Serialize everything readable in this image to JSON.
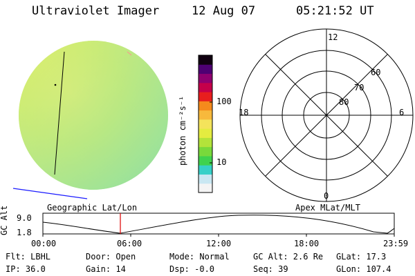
{
  "header": {
    "title": "Ultraviolet Imager",
    "date": "12 Aug 07",
    "time": "05:21:52 UT"
  },
  "colorbar": {
    "unit_label": "photon cm⁻²s⁻¹",
    "ticks": [
      "100",
      "10"
    ],
    "colors": [
      "#f4f4f4",
      "#c9e7f2",
      "#36d0c8",
      "#3fd24e",
      "#79d93b",
      "#b3e33a",
      "#e4ec40",
      "#f4e35b",
      "#f7b93c",
      "#f58a1c",
      "#e81e1e",
      "#c5004a",
      "#8f0070",
      "#4e0073",
      "#100010"
    ]
  },
  "polar_plot": {
    "mlt_labels": {
      "top": "12",
      "left": "18",
      "right": "6",
      "bottom": "0"
    },
    "lat_labels": [
      "60",
      "70",
      "80"
    ]
  },
  "image_panel": {
    "fill_color": "#c6ee72"
  },
  "timeline": {
    "left_label": "Geographic Lat/Lon",
    "right_label": "Apex MLat/MLT",
    "axis_label": "GC Alt",
    "y_ticks": [
      "9.0",
      "1.8"
    ],
    "x_ticks": [
      "00:00",
      "06:00",
      "12:00",
      "18:00",
      "23:59"
    ],
    "marker_color": "#e01010"
  },
  "info": {
    "flt": "Flt: LBHL",
    "ip": "IP: 36.0",
    "door": "Door: Open",
    "gain": "Gain: 14",
    "mode": "Mode: Normal",
    "dsp": "Dsp:   -0.0",
    "gc_alt": "GC Alt: 2.6 Re",
    "seq": "Seq: 39",
    "glat": "GLat:  17.3",
    "glon": "GLon: 107.4"
  }
}
